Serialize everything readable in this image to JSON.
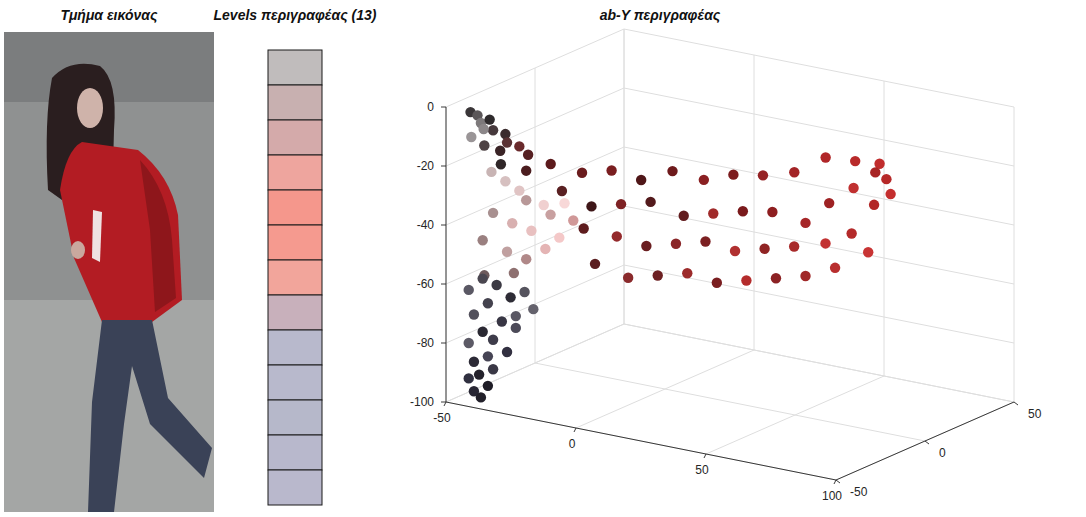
{
  "image": {
    "title": "Τμήμα εικόνας"
  },
  "chart_data": [
    {
      "type": "swatches",
      "title": "Levels περιγραφέας (13)",
      "colors": [
        "#c0bcbc",
        "#c8b0b0",
        "#d4aaaa",
        "#eea59e",
        "#f5978c",
        "#f59a8f",
        "#f2a59b",
        "#c8b0bb",
        "#b8b9cc",
        "#b8b9cc",
        "#b6b8ca",
        "#b8b8cc",
        "#b9b8cc"
      ]
    },
    {
      "type": "scatter3d",
      "title": "ab-Y περιγραφέας",
      "grid": true,
      "xlim": [
        -50,
        100
      ],
      "xticks": [
        -50,
        0,
        50,
        100
      ],
      "ylim": [
        -50,
        50
      ],
      "yticks": [
        -50,
        0,
        50
      ],
      "zlim": [
        -100,
        0
      ],
      "zticks": [
        -100,
        -80,
        -60,
        -40,
        -20,
        0
      ],
      "x": [
        -44,
        -42,
        -40,
        -38,
        -36,
        -41,
        -34,
        -32,
        -38,
        -30,
        -36,
        -43,
        -28,
        -33,
        -26,
        -20,
        -10,
        0,
        10,
        20,
        30,
        40,
        50,
        60,
        70,
        80,
        88,
        92,
        95,
        90,
        85,
        78,
        70,
        65,
        55,
        45,
        35,
        25,
        15,
        5,
        -5,
        -15,
        80,
        72,
        62,
        52,
        42,
        32,
        22,
        12,
        2,
        -8,
        85,
        75,
        65,
        55,
        45,
        35,
        25,
        15,
        5,
        -5,
        -38,
        -34,
        -30,
        -26,
        -22,
        -18,
        -36,
        -30,
        -24,
        -16,
        -12,
        -40,
        -32,
        -26,
        -20,
        -14,
        -28,
        -38,
        -40,
        -36,
        -44,
        -32,
        -38,
        -42,
        -34,
        -30,
        -40,
        -36,
        -44,
        -32,
        -38,
        -42,
        -36,
        -40,
        -44,
        -38,
        -42,
        -40,
        -28,
        -26,
        -30
      ],
      "y": [
        -45,
        -44,
        -45,
        -43,
        -44,
        -42,
        -40,
        -42,
        -46,
        -38,
        -40,
        -46,
        -36,
        -44,
        -40,
        -35,
        -32,
        -30,
        -28,
        -25,
        -22,
        -20,
        -18,
        -15,
        -12,
        -10,
        -8,
        -10,
        -12,
        -14,
        -6,
        -8,
        -10,
        -16,
        -20,
        -22,
        -24,
        -26,
        -30,
        -32,
        -34,
        -36,
        -12,
        -15,
        -18,
        -20,
        -22,
        -24,
        -26,
        -28,
        -30,
        -34,
        -10,
        -14,
        -16,
        -18,
        -20,
        -22,
        -24,
        -26,
        -28,
        -32,
        -42,
        -40,
        -38,
        -40,
        -36,
        -38,
        -44,
        -42,
        -40,
        -36,
        -34,
        -44,
        -42,
        -40,
        -38,
        -36,
        -44,
        -46,
        -44,
        -42,
        -46,
        -40,
        -44,
        -46,
        -42,
        -40,
        -44,
        -44,
        -46,
        -42,
        -44,
        -46,
        -44,
        -46,
        -46,
        -44,
        -46,
        -45,
        -38,
        -36,
        -40
      ],
      "z": [
        -2,
        -3,
        -5,
        -4,
        -7,
        -8,
        -9,
        -11,
        -12,
        -13,
        -15,
        -10,
        -16,
        -18,
        -20,
        -18,
        -20,
        -18,
        -20,
        -16,
        -18,
        -15,
        -14,
        -12,
        -6,
        -6,
        -6,
        -10,
        -14,
        -18,
        -10,
        -16,
        -22,
        -28,
        -25,
        -26,
        -28,
        -30,
        -26,
        -28,
        -30,
        -26,
        -30,
        -34,
        -36,
        -38,
        -40,
        -38,
        -40,
        -42,
        -40,
        -38,
        -36,
        -42,
        -46,
        -48,
        -50,
        -52,
        -50,
        -52,
        -54,
        -50,
        -22,
        -25,
        -28,
        -30,
        -32,
        -34,
        -35,
        -38,
        -40,
        -42,
        -36,
        -45,
        -48,
        -50,
        -46,
        -30,
        -54,
        -56,
        -58,
        -60,
        -62,
        -64,
        -66,
        -70,
        -72,
        -74,
        -76,
        -78,
        -80,
        -82,
        -84,
        -86,
        -88,
        -90,
        -92,
        -94,
        -96,
        -98,
        -62,
        -68,
        -70
      ],
      "colors": [
        "#3a3638",
        "#5b5759",
        "#7d797b",
        "#2e2a2c",
        "#46393c",
        "#8c8789",
        "#3b2c2e",
        "#5a3234",
        "#4e4244",
        "#6a2a2c",
        "#3a2426",
        "#9a9597",
        "#562022",
        "#2f2628",
        "#4b1d1f",
        "#5c1a1c",
        "#6b1c1e",
        "#7a1e20",
        "#4f1618",
        "#6e1a1c",
        "#8a2022",
        "#7c1c1e",
        "#952224",
        "#a32426",
        "#b02628",
        "#b82a2a",
        "#c02c2c",
        "#b62828",
        "#c42e2e",
        "#b22626",
        "#a82424",
        "#c03030",
        "#9e2224",
        "#a62628",
        "#8e1e20",
        "#7a1a1c",
        "#a02a2a",
        "#621c1e",
        "#531a1c",
        "#7e2224",
        "#3e1618",
        "#5a2022",
        "#b42a2a",
        "#c23232",
        "#a82a2a",
        "#902424",
        "#b03030",
        "#7c2022",
        "#8a2628",
        "#6a1e20",
        "#942a2c",
        "#5e1c1e",
        "#c83434",
        "#b82e2e",
        "#a02828",
        "#8c2224",
        "#b42c2c",
        "#7a1e20",
        "#9c2a2a",
        "#6c2022",
        "#8a2a2c",
        "#5a1e20",
        "#c8b4b4",
        "#d6c0c0",
        "#e0c4c4",
        "#b89898",
        "#f0d0d0",
        "#c8a0a0",
        "#a89090",
        "#d8b0b0",
        "#e8c0c0",
        "#f4c8c8",
        "#d09898",
        "#9a8080",
        "#c0a0a0",
        "#b08888",
        "#e4b4b4",
        "#f8d8d8",
        "#8e7070",
        "#6e5a5c",
        "#4a4650",
        "#3c3a44",
        "#5a5864",
        "#2e2c36",
        "#44424e",
        "#52505c",
        "#383644",
        "#4c4a58",
        "#2a2832",
        "#3e3c4a",
        "#5c5a66",
        "#323040",
        "#464454",
        "#2c2a36",
        "#3a3846",
        "#24222c",
        "#303040",
        "#1e1c26",
        "#282634",
        "#22202a",
        "#56545e",
        "#64626c",
        "#5a5864"
      ]
    }
  ]
}
